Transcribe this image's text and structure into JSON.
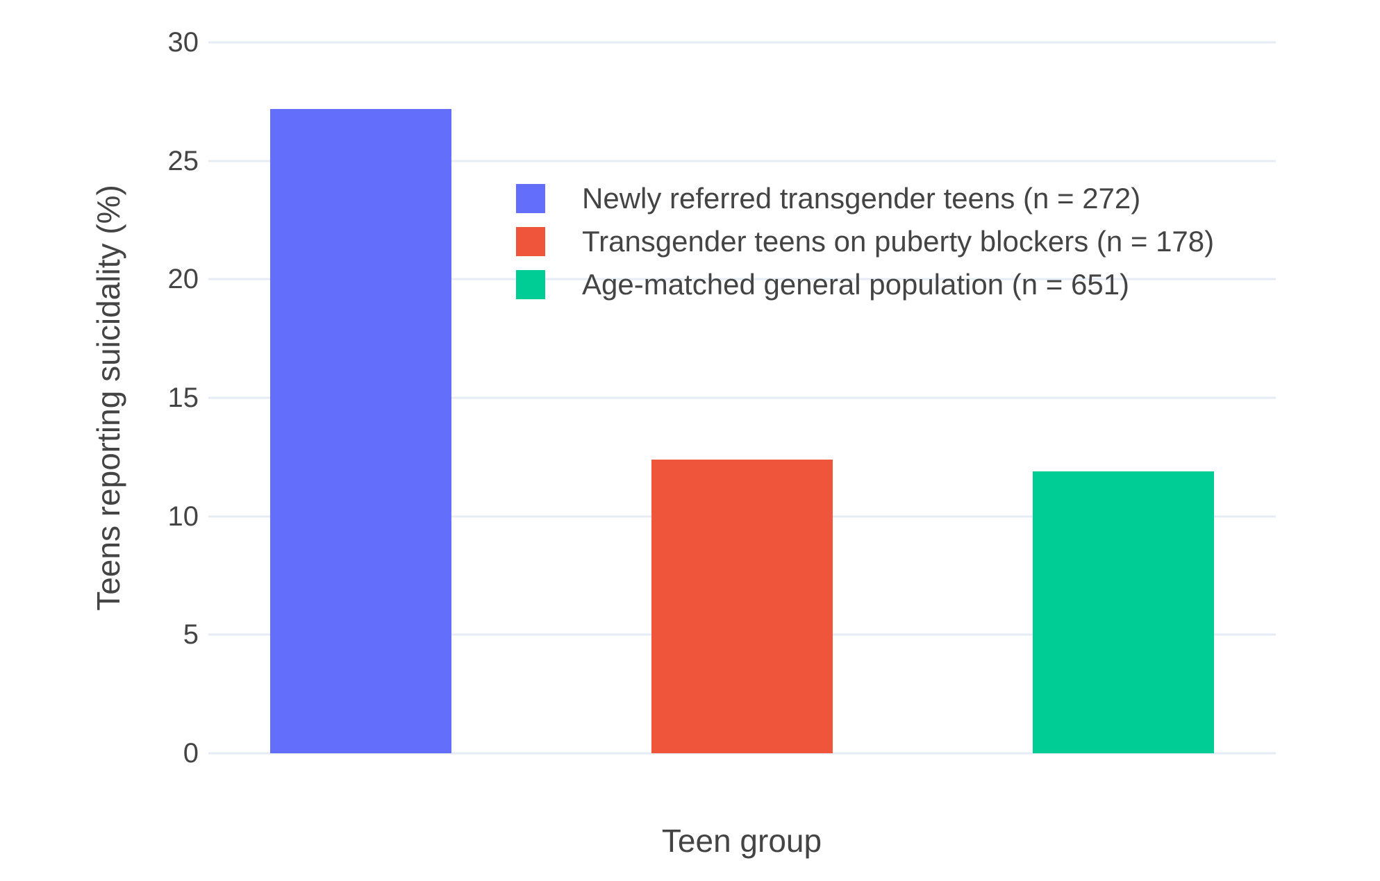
{
  "colors": {
    "background": "#FFFFFF",
    "text": "#444444",
    "gridline": "#E5ECF6"
  },
  "chart_data": {
    "type": "bar",
    "title": "",
    "xlabel": "Teen group",
    "ylabel": "Teens reporting suicidality (%)",
    "ylim": [
      0,
      30
    ],
    "yticks": [
      0,
      5,
      10,
      15,
      20,
      25,
      30
    ],
    "grid": true,
    "legend_position": "inside-top-center",
    "categories": [
      "Newly referred transgender teens",
      "Transgender teens on puberty blockers",
      "Age-matched general population"
    ],
    "series": [
      {
        "name": "Newly referred transgender teens (n = 272)",
        "value": 27.2,
        "color": "#636EFA"
      },
      {
        "name": "Transgender teens on puberty blockers (n = 178)",
        "value": 12.4,
        "color": "#EF553B"
      },
      {
        "name": "Age-matched general population (n = 651)",
        "value": 11.9,
        "color": "#00CC96"
      }
    ]
  }
}
